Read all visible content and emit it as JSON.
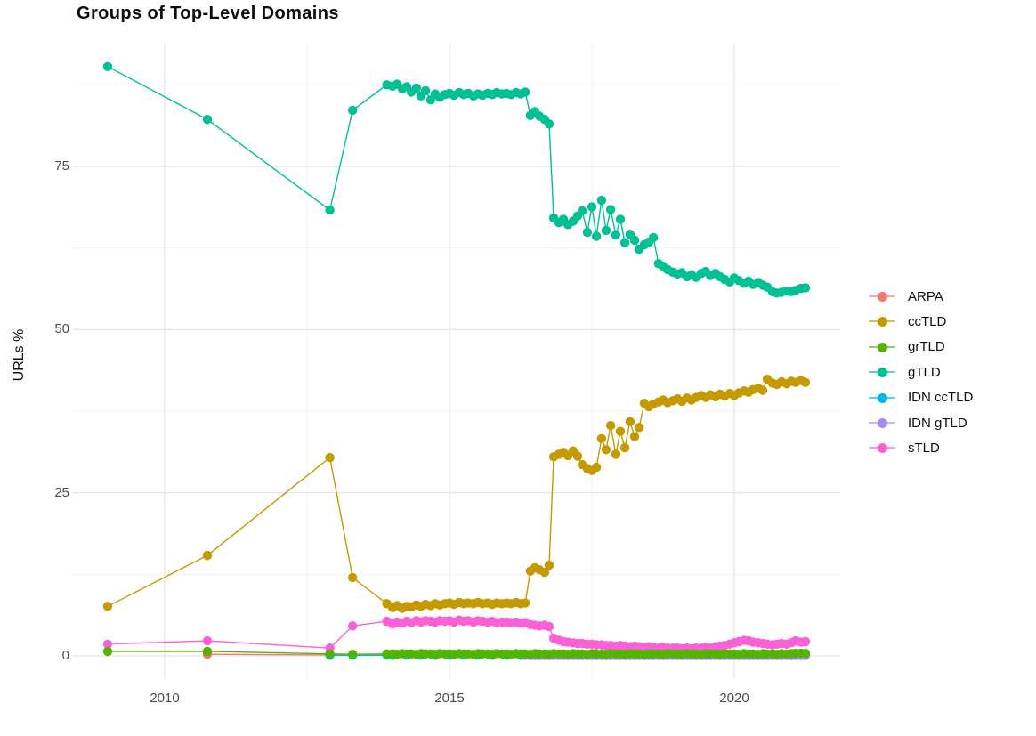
{
  "title": "Groups of Top-Level Domains",
  "y_axis": {
    "label": "URLs %",
    "ticks": [
      0,
      25,
      50,
      75
    ],
    "minor_ticks": [
      12.5,
      37.5,
      62.5,
      87.5
    ]
  },
  "x_axis": {
    "ticks": [
      2010,
      2015,
      2020
    ],
    "minor_ticks": [
      2012.5,
      2017.5
    ]
  },
  "legend": {
    "position": "right",
    "items": [
      {
        "label": "ARPA",
        "color": "#F8766D"
      },
      {
        "label": "ccTLD",
        "color": "#C49A00"
      },
      {
        "label": "grTLD",
        "color": "#53B400"
      },
      {
        "label": "gTLD",
        "color": "#00C094"
      },
      {
        "label": "IDN ccTLD",
        "color": "#00B6EB"
      },
      {
        "label": "IDN gTLD",
        "color": "#A58AFF"
      },
      {
        "label": "sTLD",
        "color": "#FB61D7"
      }
    ]
  },
  "chart_data": {
    "type": "line",
    "title": "Groups of Top-Level Domains",
    "xlabel": "",
    "ylabel": "URLs %",
    "xlim": [
      2008.4,
      2021.85
    ],
    "ylim": [
      -3.5,
      93.8
    ],
    "grid": true,
    "legend_position": "right",
    "x": [
      2009,
      2010.75,
      2012.9,
      2013.3,
      2013.9,
      2014,
      2014.08,
      2014.17,
      2014.25,
      2014.33,
      2014.42,
      2014.5,
      2014.58,
      2014.67,
      2014.75,
      2014.83,
      2014.92,
      2015,
      2015.08,
      2015.17,
      2015.25,
      2015.33,
      2015.42,
      2015.5,
      2015.58,
      2015.67,
      2015.75,
      2015.83,
      2015.92,
      2016,
      2016.08,
      2016.17,
      2016.25,
      2016.33,
      2016.42,
      2016.5,
      2016.58,
      2016.67,
      2016.75,
      2016.83,
      2016.92,
      2017,
      2017.08,
      2017.17,
      2017.25,
      2017.33,
      2017.42,
      2017.5,
      2017.58,
      2017.67,
      2017.75,
      2017.83,
      2017.92,
      2018,
      2018.08,
      2018.17,
      2018.25,
      2018.33,
      2018.42,
      2018.5,
      2018.58,
      2018.67,
      2018.75,
      2018.83,
      2018.92,
      2019,
      2019.08,
      2019.17,
      2019.25,
      2019.33,
      2019.42,
      2019.5,
      2019.58,
      2019.67,
      2019.75,
      2019.83,
      2019.92,
      2020,
      2020.08,
      2020.17,
      2020.25,
      2020.33,
      2020.42,
      2020.5,
      2020.58,
      2020.67,
      2020.75,
      2020.83,
      2020.92,
      2021,
      2021.08,
      2021.17,
      2021.25
    ],
    "series": [
      {
        "name": "ARPA",
        "color": "#F8766D",
        "x": [
          2010.75,
          2012.9
        ],
        "y": [
          0.25,
          0.15
        ]
      },
      {
        "name": "IDN ccTLD",
        "color": "#00B6EB",
        "x": [
          2012.9,
          2013.3,
          2013.9,
          2014,
          2014.25,
          2014.5,
          2014.75,
          2015,
          2015.25,
          2015.5,
          2015.75,
          2016,
          2016.25,
          2016.5,
          2016.75,
          2017,
          2017.25,
          2017.5,
          2017.75,
          2018,
          2018.25,
          2018.5,
          2018.75,
          2019,
          2019.25,
          2019.5,
          2019.75,
          2020,
          2020.25,
          2020.5,
          2020.75,
          2021,
          2021.25
        ],
        "y": [
          0.1,
          0.1,
          0.1,
          0.1,
          0.1,
          0.1,
          0.1,
          0.1,
          0.1,
          0.1,
          0.1,
          0.1,
          0.1,
          0.1,
          0.1,
          0.1,
          0.1,
          0.1,
          0.1,
          0.1,
          0.1,
          0.1,
          0.1,
          0.1,
          0.1,
          0.1,
          0.1,
          0.1,
          0.1,
          0.1,
          0.1,
          0.1,
          0.1
        ]
      },
      {
        "name": "IDN gTLD",
        "color": "#A58AFF",
        "x": [
          2016.33,
          2016.42,
          2016.5,
          2016.58,
          2016.67,
          2016.75,
          2016.83,
          2016.92,
          2017,
          2017.08,
          2017.17,
          2017.25,
          2017.33,
          2017.42,
          2017.5,
          2017.58,
          2017.67,
          2017.75,
          2017.83,
          2017.92,
          2018,
          2018.08,
          2018.17,
          2018.25,
          2018.33,
          2018.42,
          2018.5,
          2018.58,
          2018.67,
          2018.75,
          2018.83,
          2018.92,
          2019,
          2019.08,
          2019.17,
          2019.25,
          2019.33,
          2019.42,
          2019.5,
          2019.58,
          2019.67,
          2019.75,
          2019.83,
          2019.92,
          2020,
          2020.08,
          2020.17,
          2020.25,
          2020.33,
          2020.42,
          2020.5,
          2020.58,
          2020.67,
          2020.75,
          2020.83,
          2020.92,
          2021,
          2021.08,
          2021.17,
          2021.25
        ],
        "y": [
          0.05,
          0.05,
          0.05,
          0.05,
          0.05,
          0.05,
          0.05,
          0.05,
          0.05,
          0.05,
          0.05,
          0.05,
          0.05,
          0.05,
          0.05,
          0.05,
          0.05,
          0.05,
          0.05,
          0.05,
          0.05,
          0.05,
          0.05,
          0.05,
          0.05,
          0.05,
          0.05,
          0.05,
          0.05,
          0.05,
          0.05,
          0.05,
          0.05,
          0.05,
          0.05,
          0.05,
          0.05,
          0.05,
          0.05,
          0.05,
          0.05,
          0.05,
          0.05,
          0.05,
          0.05,
          0.05,
          0.05,
          0.05,
          0.05,
          0.05,
          0.05,
          0.05,
          0.05,
          0.05,
          0.05,
          0.05,
          0.05,
          0.05,
          0.05,
          0.05
        ]
      },
      {
        "name": "gTLD",
        "color": "#00C094",
        "y": [
          90.3,
          82.2,
          68.3,
          83.6,
          87.5,
          87.3,
          87.6,
          86.9,
          87.2,
          86.4,
          87.0,
          85.8,
          86.6,
          85.2,
          86.1,
          85.6,
          86.0,
          86.2,
          85.9,
          86.3,
          86.0,
          86.2,
          85.8,
          86.1,
          85.9,
          86.2,
          86.0,
          86.3,
          86.1,
          86.2,
          86.0,
          86.3,
          86.1,
          86.4,
          82.8,
          83.4,
          82.7,
          82.2,
          81.5,
          67.1,
          66.4,
          66.9,
          66.1,
          66.6,
          67.4,
          68.2,
          64.9,
          68.8,
          64.3,
          69.8,
          65.2,
          68.4,
          64.5,
          66.9,
          63.3,
          64.6,
          63.7,
          62.3,
          63.0,
          63.4,
          64.1,
          60.1,
          59.7,
          59.2,
          58.8,
          58.5,
          58.7,
          58.1,
          58.4,
          58.0,
          58.6,
          58.9,
          58.3,
          58.6,
          58.1,
          57.7,
          57.3,
          57.9,
          57.5,
          57.1,
          57.4,
          56.9,
          57.2,
          56.8,
          56.5,
          55.8,
          55.6,
          55.7,
          55.9,
          55.8,
          56.0,
          56.3,
          56.4
        ]
      },
      {
        "name": "ccTLD",
        "color": "#C49A00",
        "y": [
          7.6,
          15.4,
          30.4,
          12.0,
          8.0,
          7.4,
          7.7,
          7.3,
          7.6,
          7.5,
          7.8,
          7.6,
          7.9,
          7.7,
          8.0,
          7.8,
          8.0,
          8.1,
          7.9,
          8.2,
          8.0,
          8.1,
          8.0,
          8.2,
          8.0,
          8.1,
          7.9,
          8.1,
          8.0,
          8.1,
          8.0,
          8.2,
          8.0,
          8.1,
          13.0,
          13.5,
          13.2,
          12.8,
          13.9,
          30.5,
          30.9,
          31.2,
          30.7,
          31.4,
          30.6,
          29.3,
          28.7,
          28.4,
          28.9,
          33.3,
          31.6,
          35.3,
          30.9,
          34.4,
          31.9,
          35.9,
          33.6,
          35.0,
          38.7,
          38.2,
          38.6,
          38.9,
          39.2,
          38.8,
          39.1,
          39.4,
          39.0,
          39.5,
          39.2,
          39.6,
          39.9,
          39.6,
          40.0,
          39.7,
          40.1,
          39.8,
          40.2,
          39.9,
          40.3,
          40.6,
          40.4,
          40.8,
          41.0,
          40.7,
          42.4,
          41.8,
          41.6,
          42.0,
          41.7,
          42.1,
          41.9,
          42.2,
          41.9
        ]
      },
      {
        "name": "sTLD",
        "color": "#FB61D7",
        "y": [
          1.8,
          2.3,
          1.2,
          4.6,
          5.3,
          4.9,
          5.2,
          5.0,
          5.3,
          5.1,
          5.4,
          5.2,
          5.4,
          5.3,
          5.2,
          5.4,
          5.3,
          5.4,
          5.2,
          5.5,
          5.3,
          5.4,
          5.2,
          5.4,
          5.3,
          5.2,
          5.3,
          5.1,
          5.2,
          5.2,
          5.1,
          5.2,
          5.0,
          5.1,
          4.8,
          4.7,
          4.6,
          4.7,
          4.5,
          2.7,
          2.4,
          2.2,
          2.1,
          2.0,
          1.9,
          1.9,
          1.8,
          1.8,
          1.7,
          1.7,
          1.6,
          1.6,
          1.5,
          1.6,
          1.5,
          1.4,
          1.5,
          1.4,
          1.3,
          1.4,
          1.3,
          1.2,
          1.3,
          1.2,
          1.2,
          1.2,
          1.1,
          1.2,
          1.1,
          1.2,
          1.2,
          1.3,
          1.2,
          1.4,
          1.5,
          1.6,
          1.8,
          2.0,
          2.2,
          2.4,
          2.3,
          2.1,
          2.0,
          1.9,
          1.8,
          1.7,
          1.8,
          1.9,
          1.8,
          2.0,
          2.3,
          2.1,
          2.2
        ]
      },
      {
        "name": "grTLD",
        "color": "#53B400",
        "y": [
          0.7,
          0.7,
          0.3,
          0.25,
          0.3,
          0.3,
          0.25,
          0.35,
          0.3,
          0.3,
          0.25,
          0.35,
          0.3,
          0.3,
          0.25,
          0.35,
          0.3,
          0.3,
          0.25,
          0.35,
          0.3,
          0.3,
          0.25,
          0.35,
          0.3,
          0.3,
          0.25,
          0.35,
          0.3,
          0.3,
          0.25,
          0.35,
          0.3,
          0.3,
          0.25,
          0.35,
          0.3,
          0.3,
          0.25,
          0.35,
          0.3,
          0.3,
          0.25,
          0.35,
          0.3,
          0.3,
          0.25,
          0.35,
          0.3,
          0.3,
          0.25,
          0.35,
          0.3,
          0.3,
          0.25,
          0.35,
          0.3,
          0.3,
          0.25,
          0.35,
          0.3,
          0.3,
          0.25,
          0.35,
          0.3,
          0.3,
          0.25,
          0.35,
          0.3,
          0.3,
          0.25,
          0.35,
          0.3,
          0.3,
          0.25,
          0.35,
          0.3,
          0.3,
          0.25,
          0.35,
          0.3,
          0.3,
          0.25,
          0.35,
          0.3,
          0.3,
          0.25,
          0.35,
          0.3,
          0.35,
          0.4,
          0.4,
          0.4
        ]
      }
    ]
  }
}
